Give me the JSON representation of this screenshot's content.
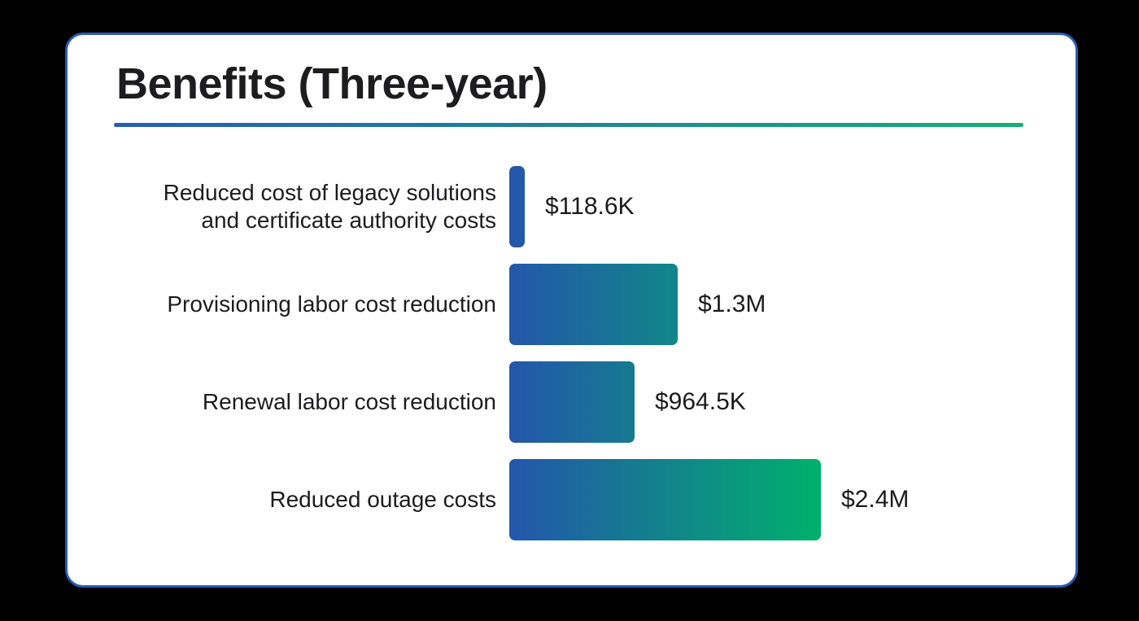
{
  "page": {
    "background_color": "#000000"
  },
  "card": {
    "background_color": "#ffffff",
    "border_color": "#2a5cb0"
  },
  "chart_data": {
    "type": "bar",
    "orientation": "horizontal",
    "title": "Benefits (Three-year)",
    "categories": [
      "Reduced cost of legacy solutions and certificate authority costs",
      "Provisioning labor cost reduction",
      "Renewal labor cost reduction",
      "Reduced outage costs"
    ],
    "category_lines": [
      [
        "Reduced cost of legacy solutions",
        "and certificate authority costs"
      ],
      [
        "Provisioning labor cost reduction"
      ],
      [
        "Renewal labor cost reduction"
      ],
      [
        "Reduced outage costs"
      ]
    ],
    "values_million_usd": [
      0.1186,
      1.3,
      0.9645,
      2.4
    ],
    "value_labels": [
      "$118.6K",
      "$1.3M",
      "$964.5K",
      "$2.4M"
    ],
    "xlim": [
      0,
      2.4
    ],
    "grid": false,
    "legend": false,
    "bar_gradient_start": "#2456ab",
    "bar_gradient_end": "#00b06c",
    "divider_gradient_start": "#2a5cb0",
    "divider_gradient_end": "#10b275",
    "title_color": "#1d1d1f",
    "label_color": "#1c1c1e"
  }
}
